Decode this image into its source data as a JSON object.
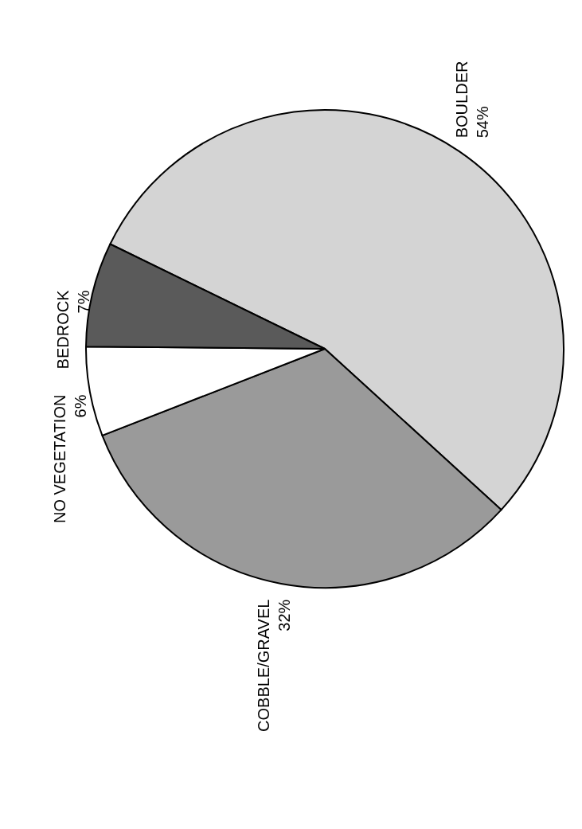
{
  "chart_data": {
    "type": "pie",
    "categories": [
      "BOULDER",
      "COBBLE/GRAVEL",
      "NO VEGETATION",
      "BEDROCK"
    ],
    "values": [
      54,
      32,
      6,
      7
    ],
    "value_labels": [
      "54%",
      "32%",
      "6%",
      "7%"
    ],
    "colors": [
      "#d4d4d4",
      "#9a9a9a",
      "#ffffff",
      "#5a5a5a"
    ]
  }
}
